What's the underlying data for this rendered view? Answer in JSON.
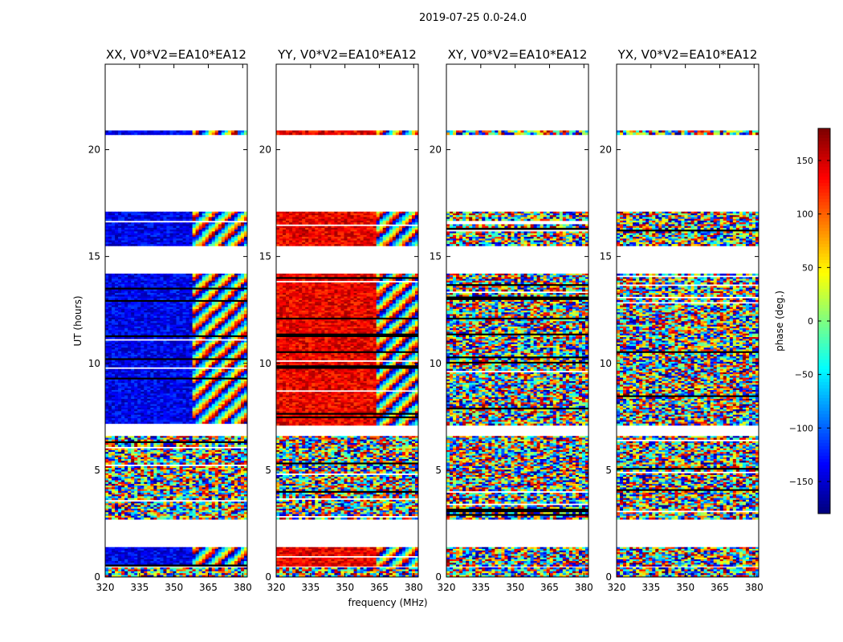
{
  "figure": {
    "suptitle": "2019-07-25 0.0-24.0",
    "xlabel": "frequency (MHz)",
    "ylabel": "UT (hours)"
  },
  "chart_data": {
    "type": "heatmap",
    "x_range": [
      320,
      382
    ],
    "y_range": [
      0,
      24
    ],
    "xticks": [
      320,
      335,
      350,
      365,
      380
    ],
    "yticks": [
      0,
      5,
      10,
      15,
      20
    ],
    "panels": [
      {
        "title": "XX, V0*V2=EA10*EA12",
        "base_phase": -140,
        "noisy": false
      },
      {
        "title": "YY, V0*V2=EA10*EA12",
        "base_phase": 140,
        "noisy": false
      },
      {
        "title": "XY, V0*V2=EA10*EA12",
        "base_phase": 0,
        "noisy": true
      },
      {
        "title": "YX, V0*V2=EA10*EA12",
        "base_phase": 0,
        "noisy": true
      }
    ],
    "data_bands_ut": [
      {
        "start": 20.7,
        "end": 20.9,
        "coherent": true
      },
      {
        "start": 15.5,
        "end": 17.1,
        "coherent": true
      },
      {
        "start": 7.1,
        "end": 14.2,
        "coherent": true
      },
      {
        "start": 2.7,
        "end": 6.6,
        "coherent": false
      },
      {
        "start": 0.5,
        "end": 1.4,
        "coherent": true
      },
      {
        "start": 0.0,
        "end": 0.45,
        "coherent": false
      }
    ],
    "colorbar": {
      "label": "phase (deg.)",
      "range": [
        -180,
        180
      ],
      "ticks": [
        150,
        100,
        50,
        0,
        -50,
        -100,
        -150
      ],
      "tick_labels": [
        "150",
        "100",
        "50",
        "0",
        "−50",
        "−100",
        "−150"
      ],
      "colormap": "jet"
    }
  }
}
